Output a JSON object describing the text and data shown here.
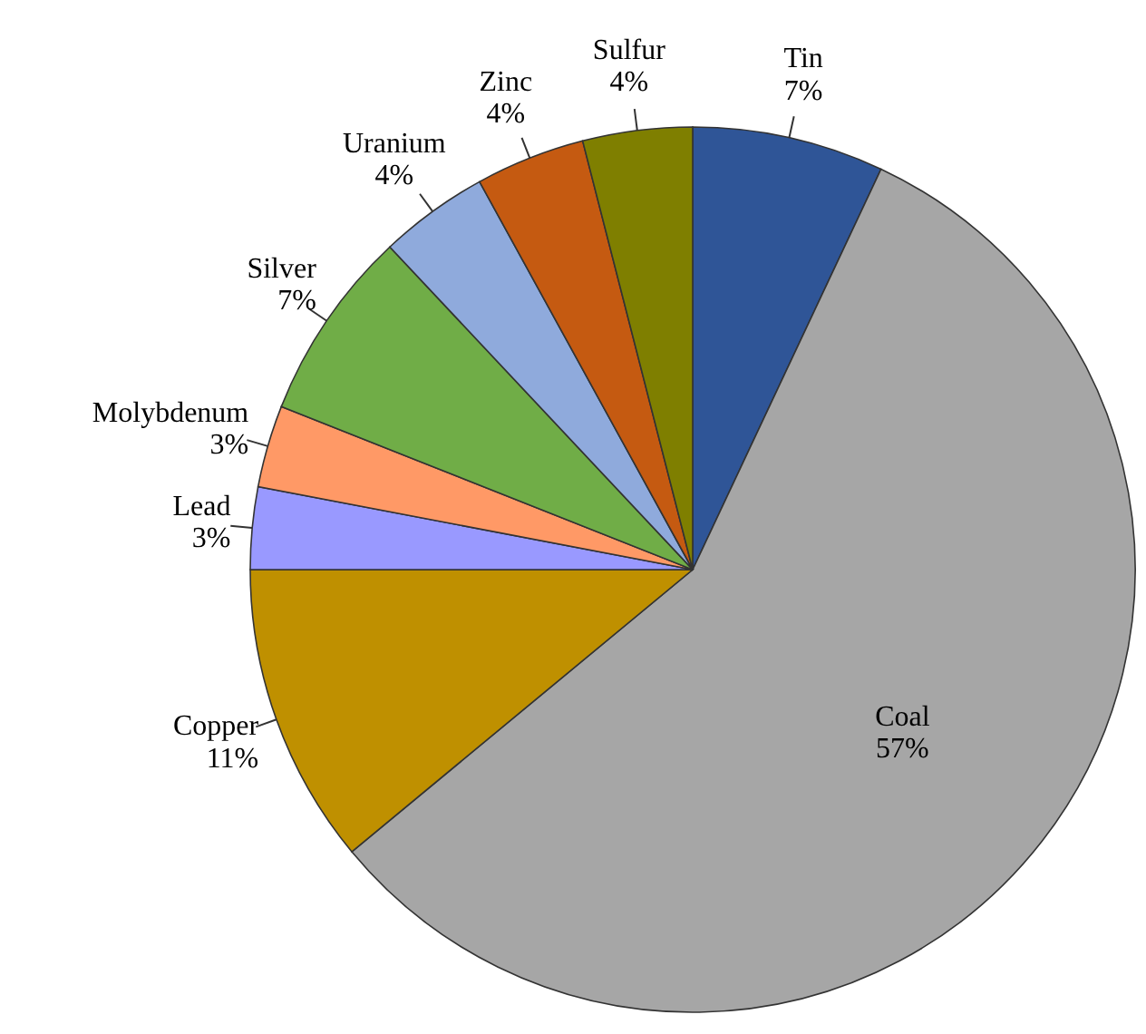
{
  "chart_data": {
    "type": "pie",
    "categories": [
      "Tin",
      "Coal",
      "Copper",
      "Lead",
      "Molybdenum",
      "Silver",
      "Uranium",
      "Zinc",
      "Sulfur"
    ],
    "values": [
      7,
      57,
      11,
      3,
      3,
      7,
      4,
      4,
      4
    ],
    "value_labels": [
      "7%",
      "57%",
      "11%",
      "3%",
      "3%",
      "7%",
      "4%",
      "4%",
      "4%"
    ],
    "colors": [
      "#2f5597",
      "#a6a6a6",
      "#bf9000",
      "#9999ff",
      "#ff9966",
      "#70ad47",
      "#8faadc",
      "#c55a11",
      "#7f7f00"
    ],
    "data_labels": true
  }
}
